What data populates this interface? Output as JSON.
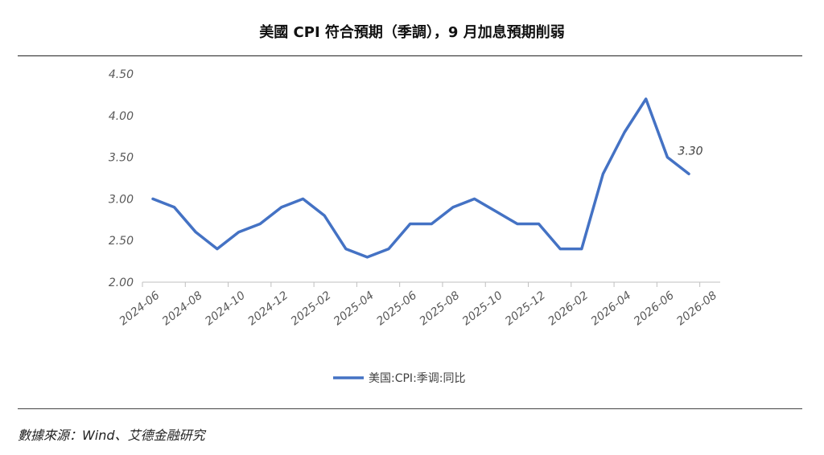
{
  "title": "美國 CPI 符合預期（季調），9 月加息預期削弱",
  "source": "數據來源：Wind、艾德金融研究",
  "chart_data": {
    "type": "line",
    "x": [
      "2024-06",
      "2024-07",
      "2024-08",
      "2024-09",
      "2024-10",
      "2024-11",
      "2024-12",
      "2025-01",
      "2025-02",
      "2025-03",
      "2025-04",
      "2025-05",
      "2025-06",
      "2025-07",
      "2025-08",
      "2025-09",
      "2025-10",
      "2025-11",
      "2025-12",
      "2026-01",
      "2026-02",
      "2026-03",
      "2026-04",
      "2026-05",
      "2026-06",
      "2026-07"
    ],
    "x_tick_labels": [
      "2024-06",
      "2024-08",
      "2024-10",
      "2024-12",
      "2025-02",
      "2025-04",
      "2025-06",
      "2025-08",
      "2025-10",
      "2025-12",
      "2026-02",
      "2026-04",
      "2026-06",
      "2026-08"
    ],
    "y_tick_labels": [
      "2.00",
      "2.50",
      "3.00",
      "3.50",
      "4.00",
      "4.50"
    ],
    "series": [
      {
        "name": "美国:CPI:季调:同比",
        "color": "#4472C4",
        "values": [
          3.0,
          2.9,
          2.6,
          2.4,
          2.6,
          2.7,
          2.9,
          3.0,
          2.8,
          2.4,
          2.3,
          2.4,
          2.7,
          2.7,
          2.9,
          3.0,
          2.85,
          2.7,
          2.7,
          2.4,
          2.4,
          3.3,
          3.8,
          4.2,
          3.5,
          3.3
        ]
      }
    ],
    "data_labels": [
      {
        "index": 25,
        "text": "3.30"
      }
    ],
    "ylim": [
      2.0,
      4.5
    ],
    "grid": false,
    "legend_position": "bottom"
  }
}
